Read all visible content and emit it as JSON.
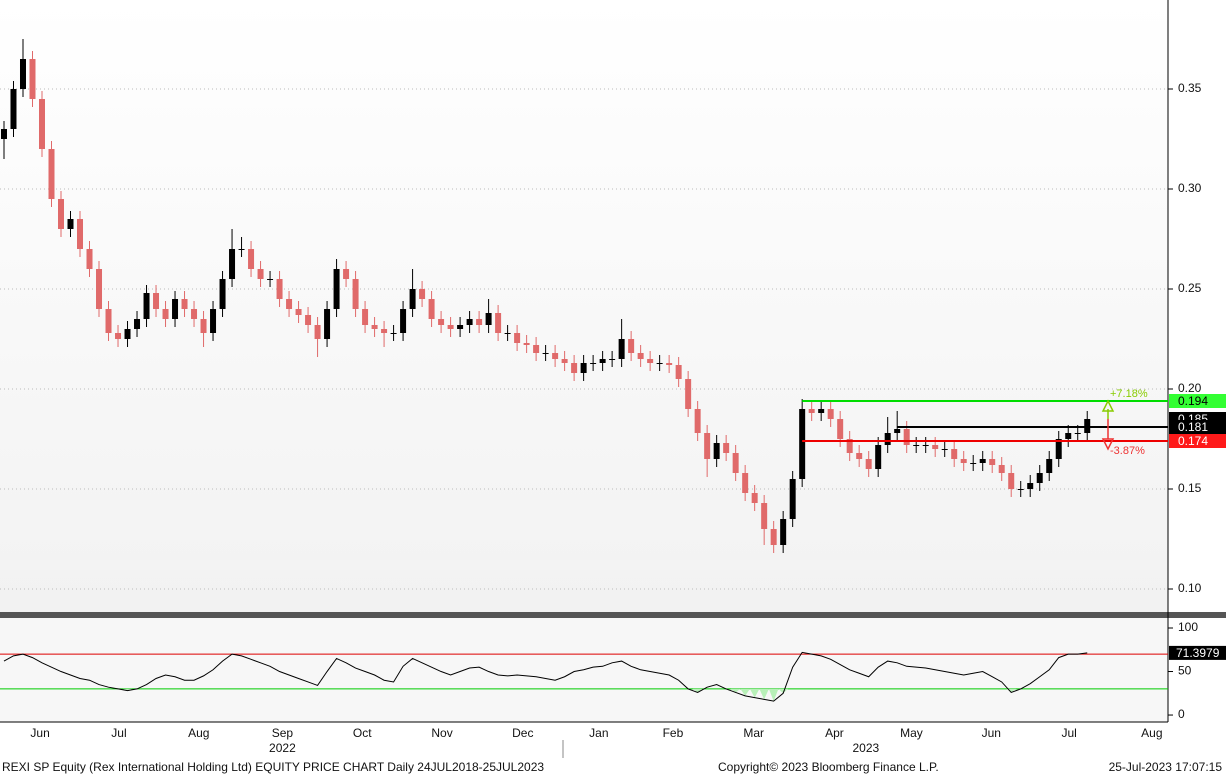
{
  "chart_data": {
    "type": "candlestick",
    "xlim": [
      -0.42,
      122.5
    ],
    "xticks": [
      {
        "value": 3.8,
        "label": "Jun"
      },
      {
        "value": 12.1,
        "label": "Jul"
      },
      {
        "value": 20.5,
        "label": "Aug"
      },
      {
        "value": 29.3,
        "label": "Sep"
      },
      {
        "value": 37.7,
        "label": "Oct"
      },
      {
        "value": 46.1,
        "label": "Nov"
      },
      {
        "value": 54.6,
        "label": "Dec"
      },
      {
        "value": 62.6,
        "label": "Jan"
      },
      {
        "value": 70.4,
        "label": "Feb"
      },
      {
        "value": 78.9,
        "label": "Mar"
      },
      {
        "value": 87.4,
        "label": "Apr"
      },
      {
        "value": 95.5,
        "label": "May"
      },
      {
        "value": 103.9,
        "label": "Jun"
      },
      {
        "value": 112.1,
        "label": "Jul"
      },
      {
        "value": 120.8,
        "label": "Aug"
      }
    ],
    "year_ticks": [
      {
        "value": 29.3,
        "label": "2022"
      },
      {
        "value": 90.7,
        "label": "2023"
      }
    ],
    "ylim": [
      0.0885,
      0.3945
    ],
    "yticks": [
      {
        "value": 0.1,
        "label": "0.10"
      },
      0.15,
      {
        "value": 0.2,
        "label": "0.20"
      },
      0.25,
      {
        "value": 0.3,
        "label": "0.30"
      },
      0.35
    ],
    "grid": true,
    "up_color": "#000000",
    "down_color": "#e06a6a",
    "ohlc": [
      [
        0.325,
        0.334,
        0.315,
        0.33
      ],
      [
        0.33,
        0.354,
        0.326,
        0.35
      ],
      [
        0.35,
        0.375,
        0.346,
        0.365
      ],
      [
        0.365,
        0.369,
        0.341,
        0.345
      ],
      [
        0.345,
        0.349,
        0.316,
        0.32
      ],
      [
        0.32,
        0.324,
        0.291,
        0.295
      ],
      [
        0.295,
        0.299,
        0.276,
        0.28
      ],
      [
        0.28,
        0.289,
        0.276,
        0.285
      ],
      [
        0.285,
        0.289,
        0.266,
        0.27
      ],
      [
        0.27,
        0.274,
        0.256,
        0.26
      ],
      [
        0.26,
        0.264,
        0.236,
        0.24
      ],
      [
        0.24,
        0.244,
        0.224,
        0.228
      ],
      [
        0.228,
        0.232,
        0.221,
        0.225
      ],
      [
        0.225,
        0.234,
        0.221,
        0.23
      ],
      [
        0.23,
        0.239,
        0.226,
        0.235
      ],
      [
        0.235,
        0.252,
        0.231,
        0.248
      ],
      [
        0.248,
        0.252,
        0.236,
        0.24
      ],
      [
        0.24,
        0.244,
        0.231,
        0.235
      ],
      [
        0.235,
        0.249,
        0.231,
        0.245
      ],
      [
        0.245,
        0.249,
        0.236,
        0.24
      ],
      [
        0.24,
        0.244,
        0.231,
        0.235
      ],
      [
        0.235,
        0.239,
        0.221,
        0.228
      ],
      [
        0.228,
        0.244,
        0.224,
        0.24
      ],
      [
        0.24,
        0.259,
        0.236,
        0.255
      ],
      [
        0.255,
        0.28,
        0.251,
        0.27
      ],
      [
        0.27,
        0.276,
        0.266,
        0.27
      ],
      [
        0.27,
        0.274,
        0.256,
        0.26
      ],
      [
        0.26,
        0.264,
        0.251,
        0.255
      ],
      [
        0.255,
        0.259,
        0.251,
        0.255
      ],
      [
        0.255,
        0.259,
        0.241,
        0.245
      ],
      [
        0.245,
        0.249,
        0.236,
        0.24
      ],
      [
        0.24,
        0.244,
        0.233,
        0.237
      ],
      [
        0.237,
        0.241,
        0.228,
        0.232
      ],
      [
        0.232,
        0.236,
        0.216,
        0.225
      ],
      [
        0.225,
        0.244,
        0.221,
        0.24
      ],
      [
        0.24,
        0.265,
        0.236,
        0.26
      ],
      [
        0.26,
        0.264,
        0.251,
        0.255
      ],
      [
        0.255,
        0.259,
        0.236,
        0.24
      ],
      [
        0.24,
        0.244,
        0.228,
        0.232
      ],
      [
        0.232,
        0.236,
        0.226,
        0.23
      ],
      [
        0.23,
        0.234,
        0.221,
        0.228
      ],
      [
        0.228,
        0.232,
        0.224,
        0.228
      ],
      [
        0.228,
        0.244,
        0.224,
        0.24
      ],
      [
        0.24,
        0.26,
        0.236,
        0.25
      ],
      [
        0.25,
        0.254,
        0.241,
        0.245
      ],
      [
        0.245,
        0.249,
        0.231,
        0.235
      ],
      [
        0.235,
        0.239,
        0.228,
        0.232
      ],
      [
        0.232,
        0.236,
        0.226,
        0.23
      ],
      [
        0.23,
        0.236,
        0.226,
        0.232
      ],
      [
        0.232,
        0.239,
        0.228,
        0.235
      ],
      [
        0.235,
        0.239,
        0.228,
        0.232
      ],
      [
        0.232,
        0.245,
        0.228,
        0.238
      ],
      [
        0.238,
        0.242,
        0.224,
        0.228
      ],
      [
        0.228,
        0.232,
        0.224,
        0.228
      ],
      [
        0.228,
        0.232,
        0.219,
        0.223
      ],
      [
        0.223,
        0.227,
        0.218,
        0.222
      ],
      [
        0.222,
        0.226,
        0.214,
        0.218
      ],
      [
        0.218,
        0.222,
        0.214,
        0.218
      ],
      [
        0.218,
        0.222,
        0.211,
        0.215
      ],
      [
        0.215,
        0.219,
        0.209,
        0.213
      ],
      [
        0.213,
        0.217,
        0.204,
        0.208
      ],
      [
        0.208,
        0.217,
        0.204,
        0.213
      ],
      [
        0.213,
        0.217,
        0.209,
        0.213
      ],
      [
        0.213,
        0.219,
        0.209,
        0.215
      ],
      [
        0.215,
        0.219,
        0.211,
        0.215
      ],
      [
        0.215,
        0.235,
        0.211,
        0.225
      ],
      [
        0.225,
        0.229,
        0.214,
        0.218
      ],
      [
        0.218,
        0.222,
        0.211,
        0.215
      ],
      [
        0.215,
        0.219,
        0.209,
        0.213
      ],
      [
        0.213,
        0.217,
        0.209,
        0.213
      ],
      [
        0.213,
        0.217,
        0.208,
        0.212
      ],
      [
        0.212,
        0.216,
        0.201,
        0.205
      ],
      [
        0.205,
        0.209,
        0.186,
        0.19
      ],
      [
        0.19,
        0.194,
        0.174,
        0.178
      ],
      [
        0.178,
        0.182,
        0.156,
        0.165
      ],
      [
        0.165,
        0.177,
        0.161,
        0.173
      ],
      [
        0.173,
        0.177,
        0.164,
        0.168
      ],
      [
        0.168,
        0.172,
        0.154,
        0.158
      ],
      [
        0.158,
        0.162,
        0.144,
        0.148
      ],
      [
        0.148,
        0.152,
        0.139,
        0.143
      ],
      [
        0.143,
        0.147,
        0.122,
        0.13
      ],
      [
        0.13,
        0.134,
        0.118,
        0.122
      ],
      [
        0.122,
        0.139,
        0.118,
        0.135
      ],
      [
        0.135,
        0.159,
        0.131,
        0.155
      ],
      [
        0.155,
        0.195,
        0.151,
        0.19
      ],
      [
        0.19,
        0.194,
        0.184,
        0.188
      ],
      [
        0.188,
        0.194,
        0.184,
        0.19
      ],
      [
        0.19,
        0.194,
        0.181,
        0.185
      ],
      [
        0.185,
        0.189,
        0.171,
        0.175
      ],
      [
        0.175,
        0.179,
        0.164,
        0.168
      ],
      [
        0.168,
        0.172,
        0.161,
        0.165
      ],
      [
        0.165,
        0.169,
        0.156,
        0.16
      ],
      [
        0.16,
        0.176,
        0.156,
        0.172
      ],
      [
        0.172,
        0.186,
        0.168,
        0.178
      ],
      [
        0.178,
        0.189,
        0.174,
        0.18
      ],
      [
        0.18,
        0.184,
        0.168,
        0.172
      ],
      [
        0.172,
        0.176,
        0.168,
        0.172
      ],
      [
        0.172,
        0.176,
        0.168,
        0.172
      ],
      [
        0.172,
        0.176,
        0.166,
        0.17
      ],
      [
        0.17,
        0.174,
        0.166,
        0.17
      ],
      [
        0.17,
        0.174,
        0.161,
        0.165
      ],
      [
        0.165,
        0.169,
        0.159,
        0.163
      ],
      [
        0.163,
        0.167,
        0.159,
        0.163
      ],
      [
        0.163,
        0.169,
        0.159,
        0.165
      ],
      [
        0.165,
        0.169,
        0.158,
        0.162
      ],
      [
        0.162,
        0.166,
        0.154,
        0.158
      ],
      [
        0.158,
        0.162,
        0.146,
        0.15
      ],
      [
        0.15,
        0.154,
        0.146,
        0.15
      ],
      [
        0.15,
        0.157,
        0.146,
        0.153
      ],
      [
        0.153,
        0.162,
        0.149,
        0.158
      ],
      [
        0.158,
        0.169,
        0.154,
        0.165
      ],
      [
        0.165,
        0.179,
        0.161,
        0.175
      ],
      [
        0.175,
        0.182,
        0.171,
        0.178
      ],
      [
        0.178,
        0.182,
        0.174,
        0.178
      ],
      [
        0.178,
        0.189,
        0.174,
        0.185
      ]
    ],
    "last_price": 0.185,
    "levels": [
      {
        "value": 0.194,
        "color": "#00dd00",
        "tag_color": "#33ff33",
        "start": 84,
        "change": "+7.18%",
        "change_color": "#88cc00"
      },
      {
        "value": 0.181,
        "color": "#000000",
        "tag_color": "#000000",
        "start": 94
      },
      {
        "value": 0.174,
        "color": "#ee0000",
        "tag_color": "#ff1a1a",
        "start": 84,
        "change": "-3.87%",
        "change_color": "#ee3333"
      }
    ],
    "indicator": {
      "type": "line",
      "color": "#000000",
      "ylim": [
        -8,
        111.5
      ],
      "yticks": [
        0,
        50,
        100
      ],
      "levels": [
        {
          "value": 70,
          "color": "#dd0000"
        },
        {
          "value": 30,
          "color": "#00cc00"
        }
      ],
      "values": [
        62,
        68,
        70,
        66,
        60,
        55,
        50,
        46,
        42,
        40,
        35,
        32,
        30,
        28,
        30,
        35,
        42,
        46,
        44,
        40,
        40,
        45,
        52,
        62,
        70,
        68,
        64,
        60,
        56,
        50,
        46,
        42,
        38,
        34,
        50,
        65,
        60,
        54,
        50,
        46,
        40,
        38,
        56,
        65,
        60,
        55,
        50,
        46,
        50,
        54,
        55,
        50,
        46,
        45,
        46,
        45,
        44,
        42,
        40,
        44,
        50,
        52,
        55,
        56,
        60,
        62,
        56,
        52,
        50,
        48,
        46,
        40,
        30,
        26,
        32,
        35,
        30,
        26,
        22,
        20,
        18,
        16,
        25,
        55,
        72,
        70,
        68,
        64,
        58,
        52,
        48,
        44,
        55,
        62,
        60,
        56,
        55,
        54,
        52,
        50,
        48,
        46,
        48,
        50,
        44,
        38,
        26,
        30,
        36,
        44,
        52,
        66,
        70,
        70,
        71.3979
      ]
    }
  },
  "footer": {
    "left": "REXI SP Equity (Rex International Holding Ltd) EQUITY PRICE CHART  Daily 24JUL2018-25JUL2023",
    "center": "Copyright© 2023 Bloomberg Finance L.P.",
    "right": "25-Jul-2023 17:07:15"
  }
}
